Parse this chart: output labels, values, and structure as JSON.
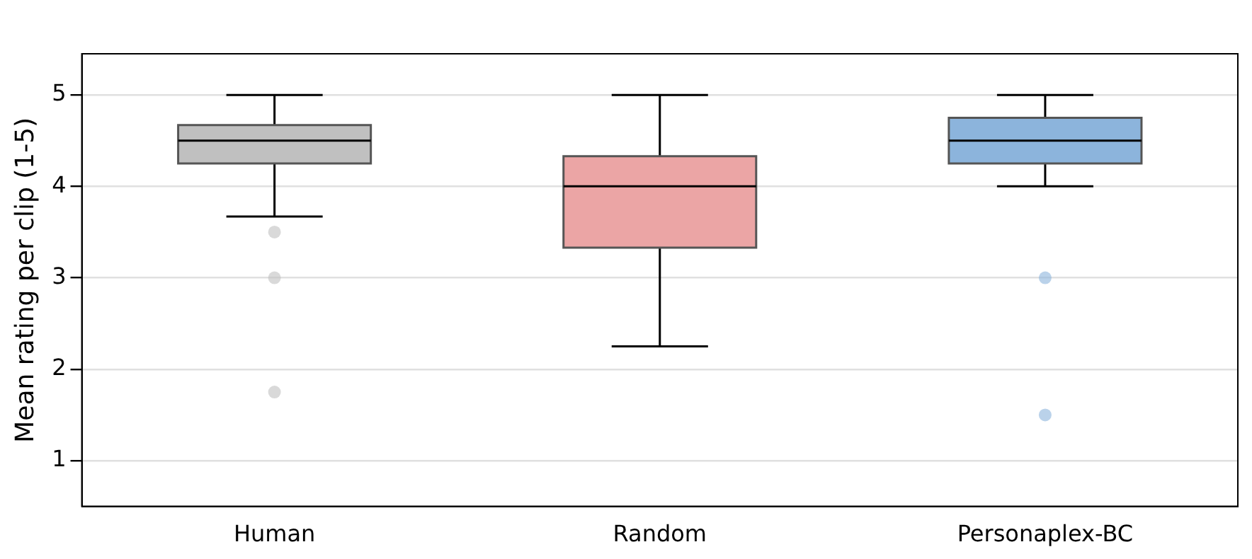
{
  "chart_data": {
    "type": "box",
    "ylabel": "Mean rating per clip (1-5)",
    "categories": [
      "Human",
      "Random",
      "Personaplex-BC"
    ],
    "colors": [
      "#c0c0c0",
      "#eba5a5",
      "#8cb4dc"
    ],
    "boxes": [
      {
        "low": 3.67,
        "q1": 4.25,
        "median": 4.5,
        "q3": 4.67,
        "high": 5,
        "outliers": [
          3.5,
          3.0,
          1.75
        ]
      },
      {
        "low": 2.25,
        "q1": 3.33,
        "median": 4.0,
        "q3": 4.33,
        "high": 5
      },
      {
        "low": 4.0,
        "q1": 4.25,
        "median": 4.5,
        "q3": 4.75,
        "high": 5,
        "outliers": [
          3.0,
          1.5
        ]
      }
    ],
    "ylim": [
      0.5,
      5.45
    ],
    "yticks": [
      1,
      2,
      3,
      4,
      5
    ],
    "grid": "y",
    "legend": false
  }
}
